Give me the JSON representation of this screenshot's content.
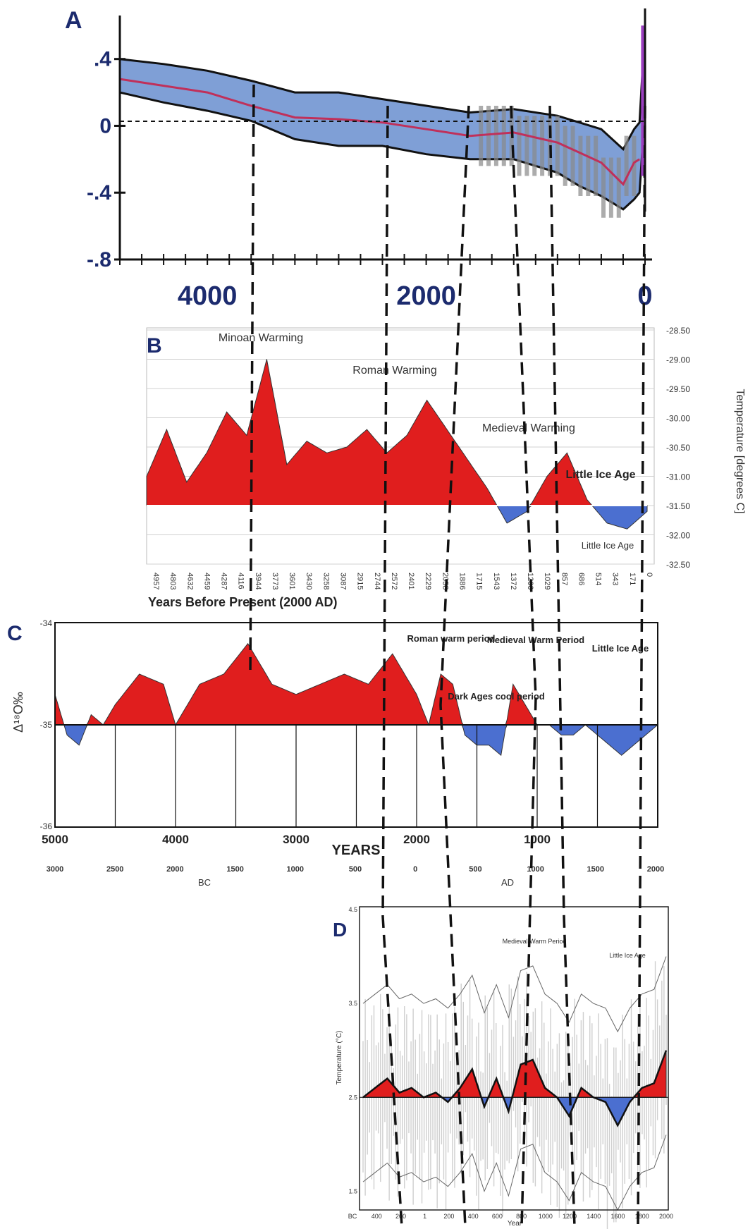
{
  "panel_letters": [
    "A",
    "B",
    "C",
    "D"
  ],
  "colors": {
    "warm": "#e01e1e",
    "cool": "#4b6fd0",
    "band": "#7f9fd6",
    "mean_line": "#c0305a",
    "navy": "#1c2b6e",
    "modern_spike": "#9b3fbf"
  },
  "chart_data": [
    {
      "panel": "A",
      "type": "line",
      "y_tick_labels": [
        ".4",
        "0",
        "-.4",
        "-.8"
      ],
      "x_tick_labels": [
        "4000",
        "2000",
        "0"
      ],
      "xlim": [
        4800,
        0
      ],
      "ylim": [
        -0.8,
        0.5
      ],
      "x": [
        4800,
        4400,
        4000,
        3600,
        3200,
        2800,
        2400,
        2000,
        1600,
        1200,
        800,
        600,
        400,
        200,
        100,
        50,
        0
      ],
      "mean": [
        0.28,
        0.24,
        0.2,
        0.12,
        0.05,
        0.04,
        0.02,
        -0.02,
        -0.06,
        -0.04,
        -0.1,
        -0.16,
        -0.22,
        -0.35,
        -0.22,
        -0.2,
        0.55
      ],
      "upper": [
        0.4,
        0.37,
        0.33,
        0.27,
        0.2,
        0.2,
        0.16,
        0.12,
        0.08,
        0.1,
        0.06,
        0.02,
        -0.02,
        -0.14,
        -0.02,
        0.02,
        0.6
      ],
      "lower": [
        0.2,
        0.14,
        0.09,
        0.03,
        -0.08,
        -0.12,
        -0.12,
        -0.17,
        -0.2,
        -0.2,
        -0.28,
        -0.36,
        -0.42,
        -0.5,
        -0.44,
        -0.4,
        0.1
      ]
    },
    {
      "panel": "B",
      "type": "area",
      "baseline": -31.5,
      "ylim": [
        -32.5,
        -28.5
      ],
      "y_tick_labels": [
        "-28.50",
        "-29.00",
        "-29.50",
        "-30.00",
        "-30.50",
        "-31.00",
        "-31.50",
        "-32.00",
        "-32.50"
      ],
      "ylabel": "Temperature [degrees C]",
      "xlabel": "Years Before Present (2000 AD)",
      "x_tick_labels": [
        "4957",
        "4803",
        "4632",
        "4459",
        "4287",
        "4116",
        "3944",
        "3773",
        "3601",
        "3430",
        "3258",
        "3087",
        "2915",
        "2744",
        "2572",
        "2401",
        "2229",
        "2058",
        "1886",
        "1715",
        "1543",
        "1372",
        "1200",
        "1029",
        "857",
        "686",
        "514",
        "343",
        "171",
        "0"
      ],
      "xlim": [
        5000,
        0
      ],
      "x": [
        5000,
        4800,
        4600,
        4400,
        4200,
        4000,
        3800,
        3600,
        3400,
        3200,
        3000,
        2800,
        2600,
        2400,
        2200,
        2000,
        1800,
        1600,
        1400,
        1200,
        1000,
        800,
        600,
        400,
        200,
        0
      ],
      "values": [
        -31.0,
        -30.2,
        -31.1,
        -30.6,
        -29.9,
        -30.3,
        -29.0,
        -30.8,
        -30.4,
        -30.6,
        -30.5,
        -30.2,
        -30.6,
        -30.3,
        -29.7,
        -30.2,
        -30.7,
        -31.2,
        -31.8,
        -31.6,
        -31.0,
        -30.6,
        -31.4,
        -31.8,
        -31.9,
        -31.6
      ],
      "annotations": [
        "Minoan Warming",
        "Roman Warming",
        "Medieval Warming",
        "Little Ice Age",
        "Little Ice Age"
      ]
    },
    {
      "panel": "C",
      "type": "area",
      "ylabel": "Δ¹⁸O‰",
      "y_tick_labels": [
        "-34",
        "-35",
        "-36"
      ],
      "baseline": -35,
      "ylim": [
        -36,
        -34
      ],
      "xlabel": "YEARS",
      "x_tick_labels": [
        "5000",
        "4000",
        "3000",
        "2000",
        "1000"
      ],
      "secondary_x_labels": [
        "3000",
        "2500",
        "2000",
        "1500",
        "1000",
        "500",
        "0",
        "500",
        "1000",
        "1500",
        "2000"
      ],
      "era_labels": [
        "BC",
        "AD"
      ],
      "xlim": [
        5000,
        0
      ],
      "x": [
        5000,
        4900,
        4800,
        4700,
        4600,
        4500,
        4300,
        4100,
        4000,
        3800,
        3600,
        3400,
        3200,
        3000,
        2800,
        2600,
        2400,
        2200,
        2100,
        2000,
        1900,
        1800,
        1700,
        1600,
        1500,
        1400,
        1300,
        1200,
        1100,
        1000,
        900,
        800,
        700,
        600,
        500,
        400,
        300,
        200,
        100,
        0
      ],
      "values": [
        -34.7,
        -35.1,
        -35.2,
        -34.9,
        -35.0,
        -34.8,
        -34.5,
        -34.6,
        -35.0,
        -34.6,
        -34.5,
        -34.2,
        -34.6,
        -34.7,
        -34.6,
        -34.5,
        -34.6,
        -34.3,
        -34.5,
        -34.7,
        -35.0,
        -34.5,
        -34.6,
        -35.1,
        -35.2,
        -35.2,
        -35.3,
        -34.6,
        -34.8,
        -35.0,
        -35.0,
        -35.1,
        -35.1,
        -35.0,
        -35.1,
        -35.2,
        -35.3,
        -35.2,
        -35.1,
        -35.0
      ],
      "annotations": [
        "Roman warm period",
        "Medieval Warm Period",
        "Little Ice Age",
        "Dark Ages cool period"
      ]
    },
    {
      "panel": "D",
      "type": "line",
      "ylabel": "Temperature (°C)",
      "xlabel": "Year",
      "y_tick_labels": [
        "4.5",
        "3.5",
        "2.5",
        "1.5"
      ],
      "x_tick_labels": [
        "BC",
        "400",
        "200",
        "1",
        "200",
        "400",
        "600",
        "800",
        "1000",
        "1200",
        "1400",
        "1600",
        "1800",
        "2000"
      ],
      "xlim": [
        -500,
        2000
      ],
      "ylim": [
        1.3,
        4.5
      ],
      "baseline": 2.5,
      "x": [
        -500,
        -400,
        -300,
        -200,
        -100,
        0,
        100,
        200,
        300,
        400,
        500,
        600,
        700,
        800,
        900,
        1000,
        1100,
        1200,
        1300,
        1400,
        1500,
        1600,
        1700,
        1800,
        1900,
        2000
      ],
      "mean": [
        2.5,
        2.6,
        2.7,
        2.55,
        2.6,
        2.5,
        2.55,
        2.45,
        2.6,
        2.8,
        2.4,
        2.7,
        2.35,
        2.85,
        2.9,
        2.6,
        2.5,
        2.3,
        2.6,
        2.5,
        2.45,
        2.2,
        2.45,
        2.6,
        2.65,
        3.0
      ],
      "annotations": [
        "Medieval Warm Period",
        "Little Ice Age"
      ]
    }
  ]
}
